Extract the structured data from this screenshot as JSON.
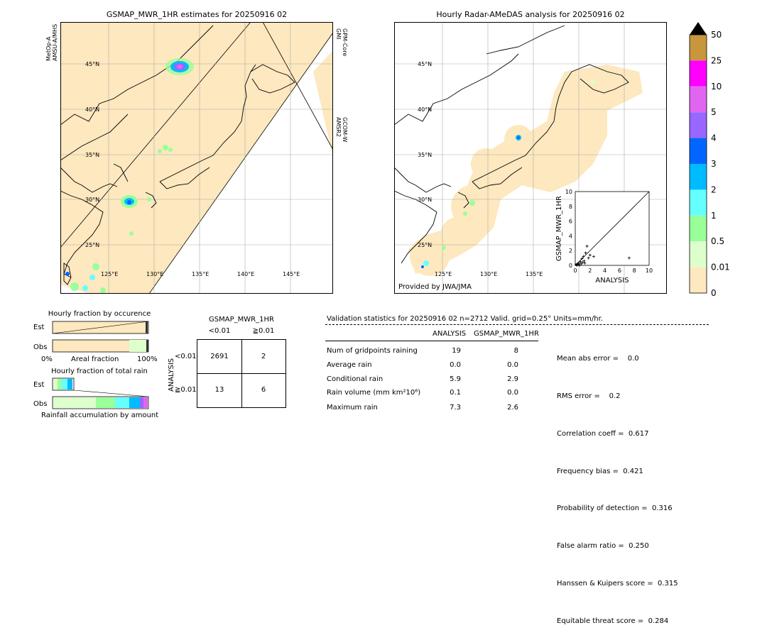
{
  "left_map": {
    "title": "GSMAP_MWR_1HR estimates for 20250916 02",
    "sat_left": [
      "MetOp-A",
      "AMSU-A/MHS"
    ],
    "sat_right_top": [
      "GPM-Core",
      "GMI"
    ],
    "sat_right_bottom": [
      "GCOM-W",
      "AMSR2"
    ],
    "lat_labels": [
      "45°N",
      "40°N",
      "35°N",
      "30°N",
      "25°N"
    ],
    "lon_labels": [
      "125°E",
      "130°E",
      "135°E",
      "140°E",
      "145°E"
    ]
  },
  "right_map": {
    "title": "Hourly Radar-AMeDAS analysis for 20250916 02",
    "lat_labels": [
      "45°N",
      "40°N",
      "35°N",
      "30°N",
      "25°N"
    ],
    "lon_labels": [
      "125°E",
      "130°E",
      "135°E"
    ],
    "credit": "Provided by JWA/JMA"
  },
  "colorbar": {
    "labels": [
      "50",
      "25",
      "10",
      "5",
      "4",
      "3",
      "2",
      "1",
      "0.5",
      "0.01",
      "0"
    ],
    "colors": [
      "#c8963c",
      "#ff00ff",
      "#e066f0",
      "#9966ff",
      "#0066ff",
      "#00bbff",
      "#66ffff",
      "#99ff99",
      "#ddffcc",
      "#fde8bf"
    ]
  },
  "chart_data": [
    {
      "type": "scatter",
      "xlabel": "ANALYSIS",
      "ylabel": "GSMAP_MWR_1HR",
      "xlim": [
        0,
        10
      ],
      "ylim": [
        0,
        10
      ],
      "ticks": [
        "0",
        "2",
        "4",
        "6",
        "8",
        "10"
      ],
      "points": [
        [
          0.1,
          0.1
        ],
        [
          0.2,
          0.0
        ],
        [
          0.3,
          0.2
        ],
        [
          0.4,
          0.1
        ],
        [
          0.5,
          0.3
        ],
        [
          0.6,
          0.0
        ],
        [
          0.7,
          0.5
        ],
        [
          0.8,
          0.2
        ],
        [
          0.9,
          0.9
        ],
        [
          1.0,
          0.4
        ],
        [
          1.1,
          1.2
        ],
        [
          1.2,
          0.6
        ],
        [
          1.3,
          0.3
        ],
        [
          1.4,
          1.7
        ],
        [
          1.6,
          2.6
        ],
        [
          1.8,
          1.0
        ],
        [
          2.0,
          1.4
        ],
        [
          2.5,
          1.2
        ],
        [
          7.3,
          1.0
        ]
      ]
    },
    {
      "type": "bar",
      "title": "Hourly fraction by occurence",
      "categories": [
        "Est",
        "Obs"
      ],
      "xlabels": [
        "0%",
        "Areal fraction",
        "100%"
      ]
    },
    {
      "type": "bar",
      "title": "Hourly fraction of total rain",
      "categories": [
        "Est",
        "Obs"
      ],
      "xlabel": "Rainfall accumulation by amount"
    }
  ],
  "contingency": {
    "title": "GSMAP_MWR_1HR",
    "col_headers": [
      "<0.01",
      "≧0.01"
    ],
    "row_axis": "ANALYSIS",
    "row_headers": [
      "<0.01",
      "≧0.01"
    ],
    "cells": [
      "2691",
      "2",
      "13",
      "6"
    ]
  },
  "stats": {
    "header": "Validation statistics for 20250916 02  n=2712 Valid. grid=0.25° Units=mm/hr.",
    "col_analysis": "ANALYSIS",
    "col_gsmap": "GSMAP_MWR_1HR",
    "rows": [
      {
        "label": "Num of gridpoints raining",
        "a": "19",
        "g": "8"
      },
      {
        "label": "Average rain",
        "a": "0.0",
        "g": "0.0"
      },
      {
        "label": "Conditional rain",
        "a": "5.9",
        "g": "2.9"
      },
      {
        "label": "Rain volume (mm km²10⁶)",
        "a": "0.1",
        "g": "0.0"
      },
      {
        "label": "Maximum rain",
        "a": "7.3",
        "g": "2.6"
      }
    ],
    "scores": [
      "Mean abs error =    0.0",
      "RMS error =    0.2",
      "Correlation coeff =  0.617",
      "Frequency bias =  0.421",
      "Probability of detection =  0.316",
      "False alarm ratio =  0.250",
      "Hanssen & Kuipers score =  0.315",
      "Equitable threat score =  0.284"
    ]
  }
}
